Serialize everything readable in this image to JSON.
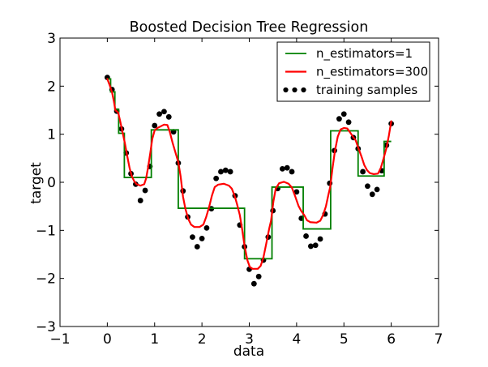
{
  "chart_data": {
    "type": "line+scatter",
    "title": "Boosted Decision Tree Regression",
    "xlabel": "data",
    "ylabel": "target",
    "xlim": [
      -1,
      7
    ],
    "ylim": [
      -3,
      3
    ],
    "xticks": [
      -1,
      0,
      1,
      2,
      3,
      4,
      5,
      6,
      7
    ],
    "yticks": [
      -3,
      -2,
      -1,
      0,
      1,
      2,
      3
    ],
    "grid": false,
    "background": "#ffffff",
    "axes_color": "#000000",
    "legend": {
      "position": "upper right",
      "entries": [
        {
          "label": "n_estimators=1",
          "marker": "line",
          "color": "#008000"
        },
        {
          "label": "n_estimators=300",
          "marker": "line",
          "color": "#ff0000"
        },
        {
          "label": "training samples",
          "marker": "dots",
          "color": "#000000"
        }
      ]
    },
    "series": [
      {
        "name": "n_estimators=1",
        "kind": "step",
        "color": "#008000",
        "line_width": 1.8,
        "segments": [
          {
            "from": 0.0,
            "to": 0.07,
            "level": 2.15
          },
          {
            "from": 0.07,
            "to": 0.16,
            "level": 1.88
          },
          {
            "from": 0.16,
            "to": 0.24,
            "level": 1.52
          },
          {
            "from": 0.24,
            "to": 0.36,
            "level": 1.02
          },
          {
            "from": 0.36,
            "to": 0.93,
            "level": 0.1
          },
          {
            "from": 0.93,
            "to": 1.5,
            "level": 1.09
          },
          {
            "from": 1.5,
            "to": 2.9,
            "level": -0.54
          },
          {
            "from": 2.9,
            "to": 3.48,
            "level": -1.59
          },
          {
            "from": 3.48,
            "to": 4.14,
            "level": -0.1
          },
          {
            "from": 4.14,
            "to": 4.72,
            "level": -0.97
          },
          {
            "from": 4.72,
            "to": 5.3,
            "level": 1.07
          },
          {
            "from": 5.3,
            "to": 5.85,
            "level": 0.13
          },
          {
            "from": 5.85,
            "to": 6.0,
            "level": 0.85
          }
        ]
      },
      {
        "name": "n_estimators=300",
        "kind": "line",
        "color": "#ff0000",
        "line_width": 2.2,
        "points": [
          [
            0,
            2.15
          ],
          [
            0.05,
            2.02
          ],
          [
            0.1,
            1.87
          ],
          [
            0.14,
            1.68
          ],
          [
            0.17,
            1.5
          ],
          [
            0.23,
            1.45
          ],
          [
            0.27,
            1.28
          ],
          [
            0.32,
            1.05
          ],
          [
            0.37,
            0.82
          ],
          [
            0.42,
            0.55
          ],
          [
            0.47,
            0.3
          ],
          [
            0.52,
            0.12
          ],
          [
            0.57,
            0.02
          ],
          [
            0.62,
            -0.04
          ],
          [
            0.7,
            -0.07
          ],
          [
            0.78,
            -0.04
          ],
          [
            0.82,
            0.08
          ],
          [
            0.86,
            0.3
          ],
          [
            0.91,
            0.62
          ],
          [
            0.95,
            0.9
          ],
          [
            1.0,
            1.08
          ],
          [
            1.06,
            1.13
          ],
          [
            1.12,
            1.16
          ],
          [
            1.2,
            1.2
          ],
          [
            1.27,
            1.19
          ],
          [
            1.32,
            1.05
          ],
          [
            1.38,
            0.82
          ],
          [
            1.44,
            0.62
          ],
          [
            1.5,
            0.42
          ],
          [
            1.55,
            0.12
          ],
          [
            1.6,
            -0.3
          ],
          [
            1.65,
            -0.55
          ],
          [
            1.71,
            -0.76
          ],
          [
            1.77,
            -0.88
          ],
          [
            1.84,
            -0.93
          ],
          [
            1.95,
            -0.93
          ],
          [
            2.03,
            -0.88
          ],
          [
            2.09,
            -0.72
          ],
          [
            2.15,
            -0.52
          ],
          [
            2.21,
            -0.28
          ],
          [
            2.27,
            -0.1
          ],
          [
            2.34,
            -0.05
          ],
          [
            2.46,
            -0.03
          ],
          [
            2.57,
            -0.07
          ],
          [
            2.63,
            -0.13
          ],
          [
            2.69,
            -0.28
          ],
          [
            2.74,
            -0.45
          ],
          [
            2.8,
            -0.68
          ],
          [
            2.85,
            -0.98
          ],
          [
            2.9,
            -1.32
          ],
          [
            2.96,
            -1.62
          ],
          [
            3.01,
            -1.76
          ],
          [
            3.07,
            -1.8
          ],
          [
            3.18,
            -1.8
          ],
          [
            3.24,
            -1.74
          ],
          [
            3.3,
            -1.56
          ],
          [
            3.36,
            -1.27
          ],
          [
            3.42,
            -0.97
          ],
          [
            3.46,
            -0.8
          ],
          [
            3.51,
            -0.4
          ],
          [
            3.56,
            -0.13
          ],
          [
            3.63,
            -0.02
          ],
          [
            3.73,
            0.01
          ],
          [
            3.83,
            -0.03
          ],
          [
            3.9,
            -0.11
          ],
          [
            3.97,
            -0.29
          ],
          [
            4.04,
            -0.49
          ],
          [
            4.1,
            -0.6
          ],
          [
            4.16,
            -0.68
          ],
          [
            4.22,
            -0.79
          ],
          [
            4.29,
            -0.83
          ],
          [
            4.42,
            -0.84
          ],
          [
            4.5,
            -0.8
          ],
          [
            4.56,
            -0.68
          ],
          [
            4.62,
            -0.5
          ],
          [
            4.67,
            -0.27
          ],
          [
            4.71,
            -0.1
          ],
          [
            4.76,
            0.3
          ],
          [
            4.81,
            0.65
          ],
          [
            4.87,
            0.95
          ],
          [
            4.93,
            1.1
          ],
          [
            5.0,
            1.13
          ],
          [
            5.07,
            1.12
          ],
          [
            5.13,
            1.04
          ],
          [
            5.19,
            0.95
          ],
          [
            5.25,
            0.87
          ],
          [
            5.31,
            0.7
          ],
          [
            5.37,
            0.54
          ],
          [
            5.43,
            0.36
          ],
          [
            5.49,
            0.25
          ],
          [
            5.55,
            0.19
          ],
          [
            5.63,
            0.17
          ],
          [
            5.72,
            0.18
          ],
          [
            5.78,
            0.3
          ],
          [
            5.84,
            0.5
          ],
          [
            5.9,
            0.72
          ],
          [
            5.95,
            0.97
          ],
          [
            6.0,
            1.27
          ]
        ]
      },
      {
        "name": "training samples",
        "kind": "scatter",
        "color": "#000000",
        "marker_radius": 3.4,
        "x": [
          0.0,
          0.1,
          0.2,
          0.3,
          0.4,
          0.5,
          0.6,
          0.7,
          0.8,
          0.9,
          1.0,
          1.1,
          1.2,
          1.3,
          1.4,
          1.5,
          1.6,
          1.7,
          1.8,
          1.9,
          2.0,
          2.1,
          2.2,
          2.3,
          2.4,
          2.5,
          2.6,
          2.7,
          2.8,
          2.9,
          3.0,
          3.1,
          3.2,
          3.3,
          3.4,
          3.5,
          3.6,
          3.7,
          3.8,
          3.9,
          4.0,
          4.1,
          4.2,
          4.3,
          4.4,
          4.5,
          4.6,
          4.7,
          4.8,
          4.9,
          5.0,
          5.1,
          5.2,
          5.3,
          5.4,
          5.5,
          5.6,
          5.7,
          5.8,
          5.9,
          6.0
        ],
        "y": [
          2.18,
          1.93,
          1.48,
          1.11,
          0.61,
          0.18,
          -0.04,
          -0.38,
          -0.17,
          0.33,
          1.18,
          1.42,
          1.47,
          1.36,
          1.05,
          0.4,
          -0.18,
          -0.72,
          -1.14,
          -1.34,
          -1.17,
          -0.95,
          -0.55,
          0.08,
          0.22,
          0.25,
          0.22,
          -0.28,
          -0.89,
          -1.34,
          -1.81,
          -2.11,
          -1.96,
          -1.62,
          -1.14,
          -0.59,
          -0.13,
          0.28,
          0.3,
          0.22,
          -0.2,
          -0.75,
          -1.12,
          -1.33,
          -1.31,
          -1.18,
          -0.66,
          -0.02,
          0.66,
          1.32,
          1.42,
          1.25,
          0.93,
          0.7,
          0.22,
          -0.08,
          -0.25,
          -0.15,
          0.24,
          0.77,
          1.22
        ]
      }
    ]
  }
}
